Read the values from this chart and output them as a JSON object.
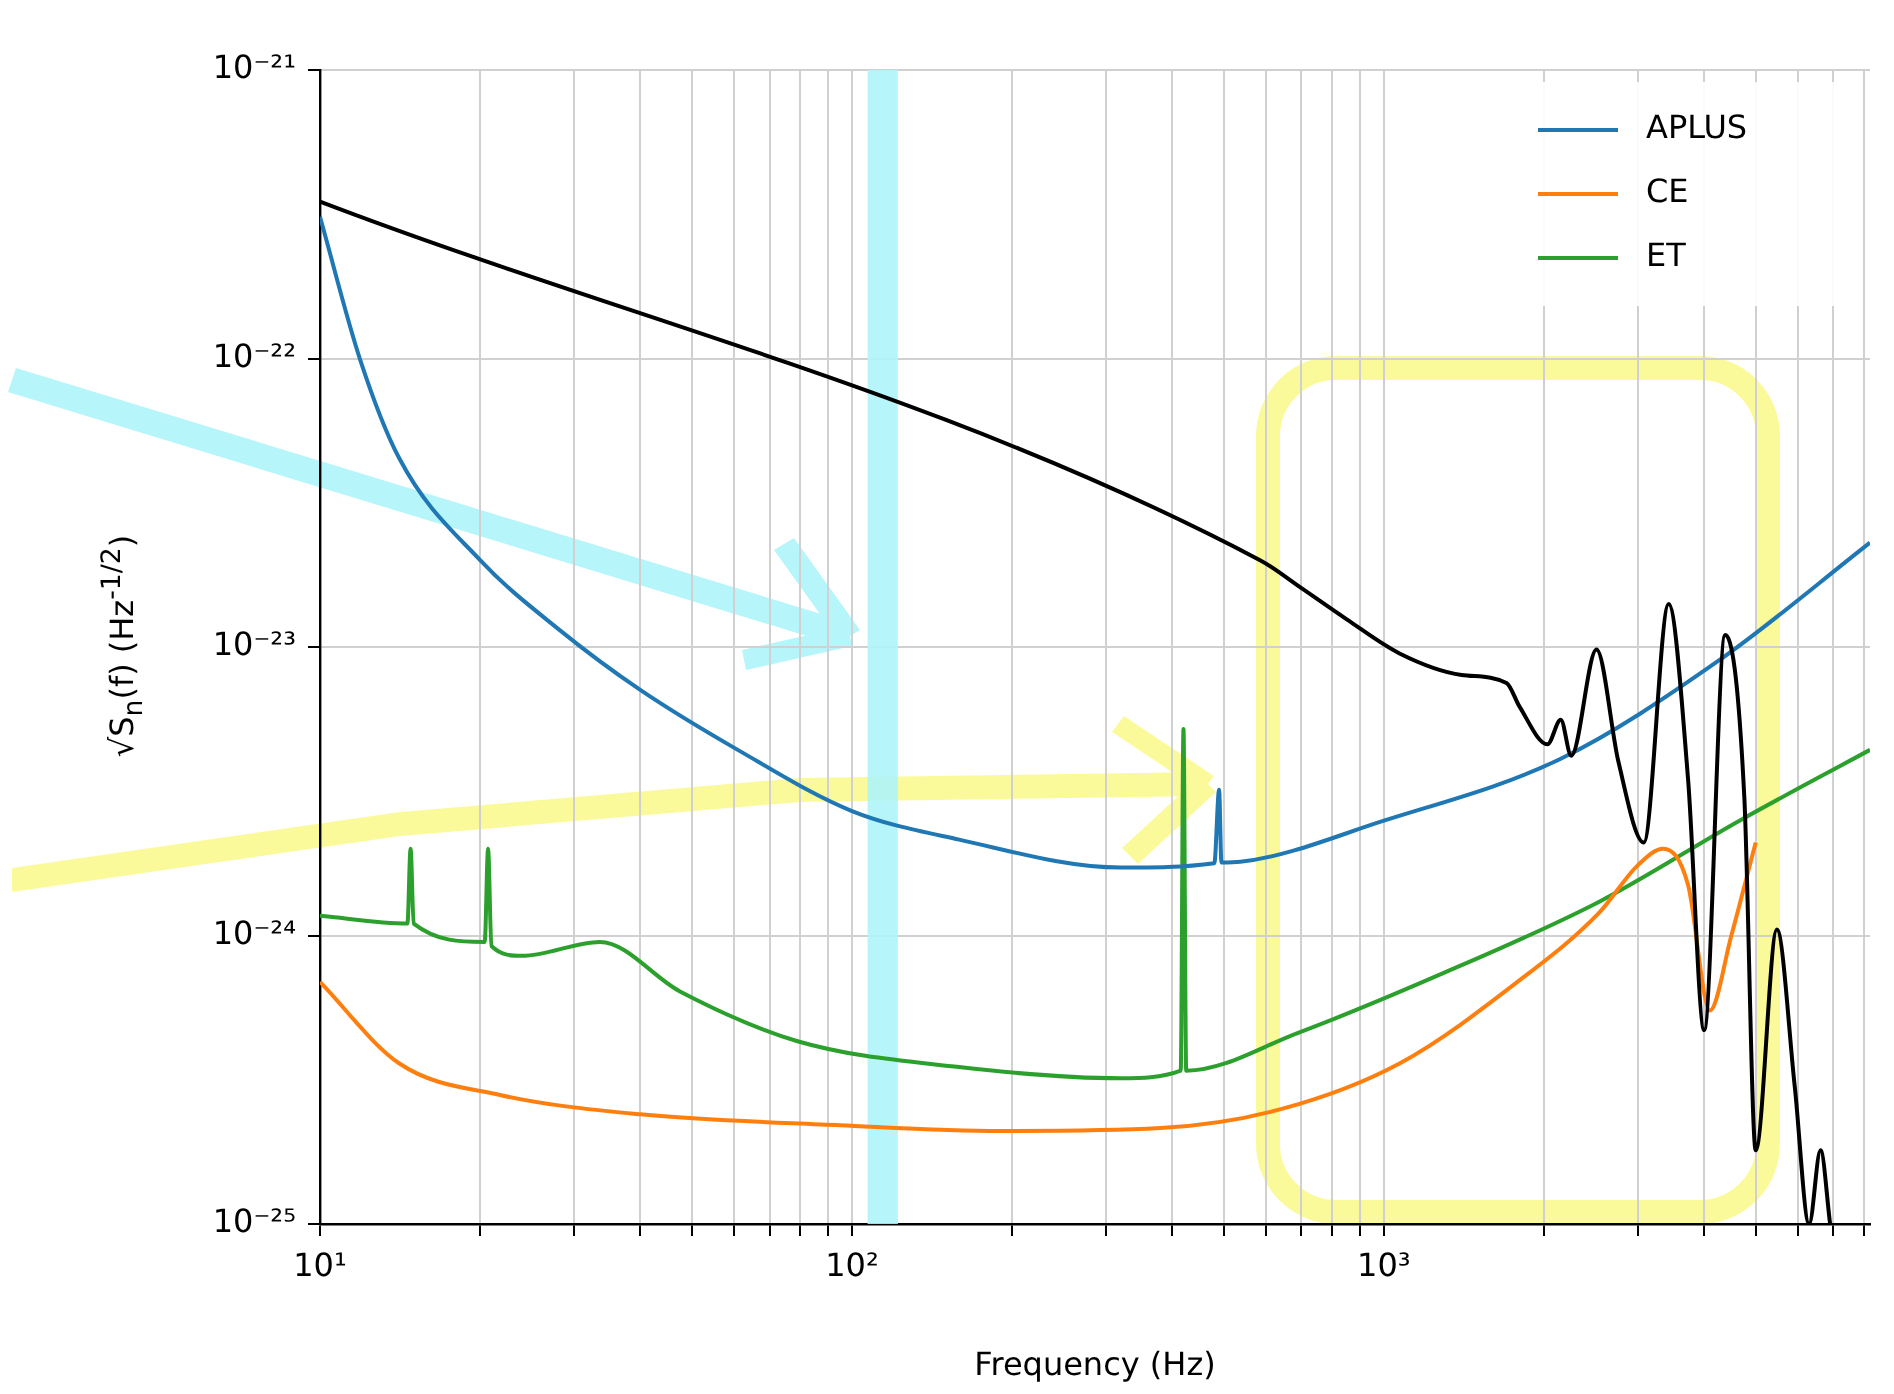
{
  "chart_data": {
    "type": "line",
    "xlabel": "Frequency (Hz)",
    "ylabel": "√S$_{n}$(f) (Hz$^{-1/2}$)",
    "log": "xy",
    "grid": true,
    "legend": "top right",
    "marker": "none",
    "line_style": "solid",
    "xlim": [
      10,
      8200
    ],
    "ylim": [
      1e-25,
      1e-21
    ],
    "xticks": [
      {
        "value": 10,
        "label": "10¹"
      },
      {
        "value": 20,
        "label": null
      },
      {
        "value": 30,
        "label": null
      },
      {
        "value": 40,
        "label": null
      },
      {
        "value": 50,
        "label": null
      },
      {
        "value": 60,
        "label": null
      },
      {
        "value": 70,
        "label": null
      },
      {
        "value": 80,
        "label": null
      },
      {
        "value": 90,
        "label": null
      },
      {
        "value": 100,
        "label": "10²"
      },
      {
        "value": 200,
        "label": null
      },
      {
        "value": 300,
        "label": null
      },
      {
        "value": 400,
        "label": null
      },
      {
        "value": 500,
        "label": null
      },
      {
        "value": 600,
        "label": null
      },
      {
        "value": 700,
        "label": null
      },
      {
        "value": 800,
        "label": null
      },
      {
        "value": 900,
        "label": null
      },
      {
        "value": 1000,
        "label": "10³"
      },
      {
        "value": 2000,
        "label": null
      },
      {
        "value": 3000,
        "label": null
      },
      {
        "value": 4000,
        "label": null
      },
      {
        "value": 5000,
        "label": null
      },
      {
        "value": 6000,
        "label": null
      },
      {
        "value": 7000,
        "label": null
      },
      {
        "value": 8000,
        "label": null
      }
    ],
    "yticks": [
      {
        "value": 1e-25,
        "label": "10⁻²⁵"
      },
      {
        "value": 1e-24,
        "label": "10⁻²⁴"
      },
      {
        "value": 1e-23,
        "label": "10⁻²³"
      },
      {
        "value": 1e-22,
        "label": "10⁻²²"
      },
      {
        "value": 1e-21,
        "label": "10⁻²¹"
      }
    ],
    "bands": [
      {
        "axis": "x",
        "from": 107,
        "to": 122,
        "color": "#aef4f8"
      }
    ],
    "series": [
      {
        "color": "#000000",
        "x": [
          10,
          585,
          700,
          850,
          1070,
          1400,
          1700,
          1800,
          2030,
          2150,
          2250,
          2510,
          2760,
          3080,
          3430,
          3730,
          4000,
          4380,
          4760,
          5000,
          5480,
          5920,
          6300,
          6620,
          6900
        ],
        "values": [
          3.5e-22,
          2e-23,
          1.6e-23,
          1.25e-23,
          9.5e-24,
          8e-24,
          7.5e-24,
          6.2e-24,
          4.6e-24,
          5.6e-24,
          4.2e-24,
          9.8e-24,
          4e-24,
          2.1e-24,
          1.41e-23,
          3.5e-24,
          4.7e-25,
          1.1e-23,
          3e-24,
          1.8e-25,
          1.05e-24,
          3e-25,
          1e-25,
          1.8e-25,
          1e-25
        ]
      },
      {
        "name": "APLUS",
        "color": "#1f77b4",
        "x": [
          10,
          11.9,
          14.1,
          20,
          28.3,
          40,
          61,
          100,
          159,
          320,
          480,
          490,
          495,
          537,
          1000,
          2150,
          4270,
          8200
        ],
        "values": [
          3.1e-22,
          9.9e-23,
          4.5e-23,
          2e-23,
          1.14e-23,
          7.1e-24,
          4.4e-24,
          2.7e-24,
          2.15e-24,
          1.72e-24,
          1.78e-24,
          3.2e-24,
          1.79e-24,
          1.8e-24,
          2.5e-24,
          4.1e-24,
          9e-24,
          2.3e-23
        ]
      },
      {
        "name": "CE",
        "color": "#ff7f0e",
        "x": [
          10,
          14.1,
          21.8,
          40,
          95,
          190,
          380,
          640,
          1070,
          1800,
          2540,
          3000,
          3350,
          3730,
          4100,
          4500,
          5000
        ],
        "values": [
          6.9e-25,
          3.6e-25,
          2.8e-25,
          2.4e-25,
          2.2e-25,
          2.1e-25,
          2.15e-25,
          2.5e-25,
          3.6e-25,
          7e-25,
          1.2e-24,
          1.75e-24,
          2e-24,
          1.5e-24,
          5.5e-25,
          1e-24,
          2.1e-24
        ]
      },
      {
        "name": "ET",
        "color": "#2ca02c",
        "x": [
          10,
          14.6,
          14.8,
          15,
          20.4,
          20.7,
          21,
          24,
          33.6,
          47.5,
          79,
          159,
          320,
          415,
          420,
          425,
          690,
          1270,
          2540,
          4660,
          8200
        ],
        "values": [
          1.17e-24,
          1.1e-24,
          2e-24,
          1.1e-24,
          9.5e-25,
          2e-24,
          9.2e-25,
          8.5e-25,
          9.5e-25,
          6.4e-25,
          4.3e-25,
          3.5e-25,
          3.2e-25,
          3.4e-25,
          5.2e-24,
          3.4e-25,
          4.6e-25,
          7.3e-25,
          1.31e-24,
          2.5e-24,
          4.4e-24
        ]
      }
    ]
  }
}
